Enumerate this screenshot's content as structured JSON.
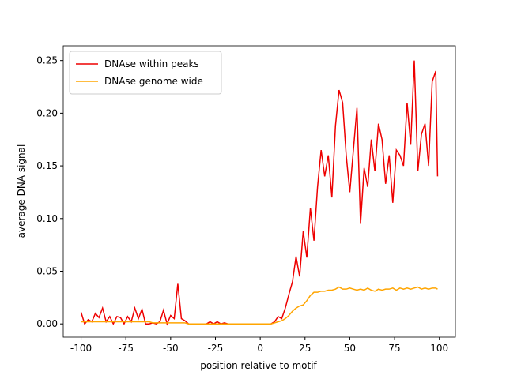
{
  "chart_data": {
    "type": "line",
    "xlabel": "position relative to motif",
    "ylabel": "average DNA signal",
    "x": [
      -100,
      -98,
      -96,
      -94,
      -92,
      -90,
      -88,
      -86,
      -84,
      -82,
      -80,
      -78,
      -76,
      -74,
      -72,
      -70,
      -68,
      -66,
      -64,
      -62,
      -60,
      -58,
      -56,
      -54,
      -52,
      -50,
      -48,
      -46,
      -44,
      -42,
      -40,
      -38,
      -36,
      -34,
      -32,
      -30,
      -28,
      -26,
      -24,
      -22,
      -20,
      -18,
      -16,
      -14,
      -12,
      -10,
      -8,
      -6,
      -4,
      -2,
      0,
      2,
      4,
      6,
      8,
      10,
      12,
      14,
      16,
      18,
      20,
      22,
      24,
      26,
      28,
      30,
      32,
      34,
      36,
      38,
      40,
      42,
      44,
      46,
      48,
      50,
      52,
      54,
      56,
      58,
      60,
      62,
      64,
      66,
      68,
      70,
      72,
      74,
      76,
      78,
      80,
      82,
      84,
      86,
      88,
      90,
      92,
      94,
      96,
      98,
      99
    ],
    "series": [
      {
        "name": "DNAse within peaks",
        "color": "#ee0000",
        "values": [
          0.011,
          0.0,
          0.004,
          0.002,
          0.01,
          0.006,
          0.015,
          0.002,
          0.007,
          0.0,
          0.007,
          0.006,
          0.0,
          0.007,
          0.002,
          0.015,
          0.005,
          0.014,
          0.0,
          0.0,
          0.001,
          0.0,
          0.002,
          0.013,
          0.0,
          0.008,
          0.005,
          0.038,
          0.005,
          0.003,
          0.0,
          0.0,
          0.0,
          0.0,
          0.0,
          0.0,
          0.002,
          0.0,
          0.002,
          0.0,
          0.001,
          0.0,
          0.0,
          0.0,
          0.0,
          0.0,
          0.0,
          0.0,
          0.0,
          0.0,
          0.0,
          0.0,
          0.0,
          0.0,
          0.002,
          0.007,
          0.005,
          0.015,
          0.028,
          0.04,
          0.064,
          0.045,
          0.088,
          0.063,
          0.11,
          0.079,
          0.13,
          0.165,
          0.14,
          0.16,
          0.12,
          0.188,
          0.222,
          0.21,
          0.16,
          0.125,
          0.165,
          0.205,
          0.095,
          0.148,
          0.13,
          0.175,
          0.145,
          0.19,
          0.175,
          0.133,
          0.16,
          0.115,
          0.165,
          0.16,
          0.15,
          0.21,
          0.17,
          0.25,
          0.145,
          0.18,
          0.19,
          0.15,
          0.23,
          0.24,
          0.14
        ]
      },
      {
        "name": "DNAse genome wide",
        "color": "#ffa500",
        "values": [
          0.002,
          0.002,
          0.002,
          0.002,
          0.002,
          0.002,
          0.002,
          0.002,
          0.002,
          0.002,
          0.002,
          0.002,
          0.002,
          0.002,
          0.002,
          0.002,
          0.002,
          0.002,
          0.002,
          0.002,
          0.001,
          0.001,
          0.001,
          0.001,
          0.001,
          0.001,
          0.001,
          0.001,
          0.001,
          0.001,
          0.0,
          0.0,
          0.0,
          0.0,
          0.0,
          0.0,
          0.0,
          0.0,
          0.0,
          0.0,
          0.0,
          0.0,
          0.0,
          0.0,
          0.0,
          0.0,
          0.0,
          0.0,
          0.0,
          0.0,
          0.0,
          0.0,
          0.0,
          0.0,
          0.001,
          0.002,
          0.003,
          0.005,
          0.008,
          0.012,
          0.015,
          0.017,
          0.018,
          0.022,
          0.027,
          0.03,
          0.03,
          0.031,
          0.031,
          0.032,
          0.032,
          0.033,
          0.035,
          0.033,
          0.033,
          0.034,
          0.033,
          0.032,
          0.033,
          0.032,
          0.034,
          0.032,
          0.031,
          0.033,
          0.032,
          0.033,
          0.033,
          0.034,
          0.032,
          0.034,
          0.033,
          0.034,
          0.033,
          0.034,
          0.035,
          0.033,
          0.034,
          0.033,
          0.034,
          0.034,
          0.033
        ]
      }
    ],
    "xlim": [
      -109.95,
      108.95
    ],
    "ylim": [
      -0.0126,
      0.264
    ],
    "xticks": [
      -100,
      -75,
      -50,
      -25,
      0,
      25,
      50,
      75,
      100
    ],
    "yticks": [
      {
        "value": 0,
        "label": "0.00"
      },
      0.05,
      {
        "value": 0.1,
        "label": "0.10"
      },
      0.15,
      {
        "value": 0.2,
        "label": "0.20"
      },
      0.25
    ],
    "grid": false,
    "legend": "upper left"
  }
}
